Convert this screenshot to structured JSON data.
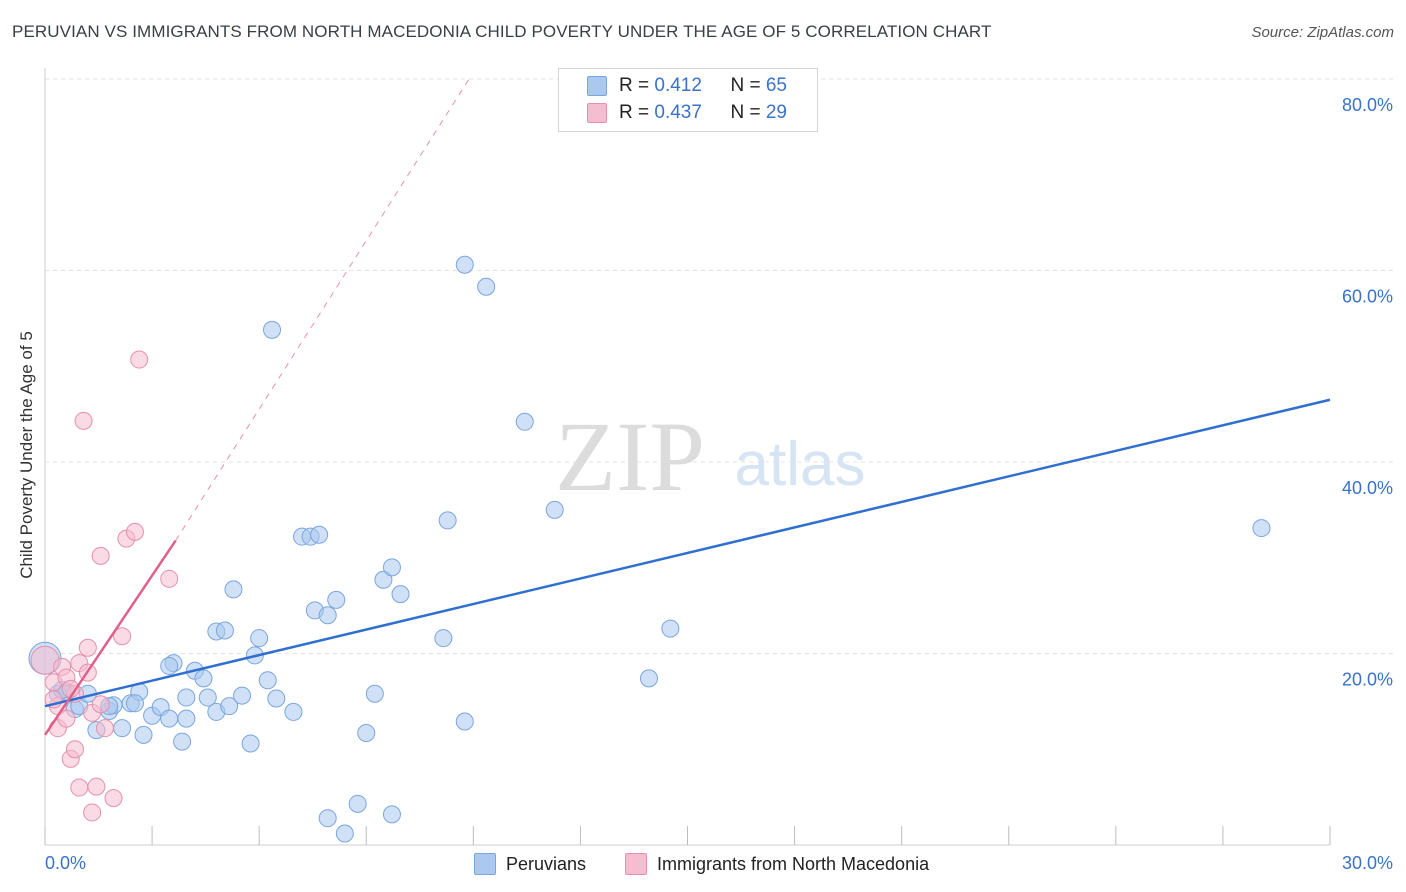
{
  "title": "PERUVIAN VS IMMIGRANTS FROM NORTH MACEDONIA CHILD POVERTY UNDER THE AGE OF 5 CORRELATION CHART",
  "source": "Source: ZipAtlas.com",
  "watermark": {
    "zip": "ZIP",
    "atlas": "atlas"
  },
  "legend": [
    {
      "r_label": "R = ",
      "r_value": "0.412",
      "n_label": "N = ",
      "n_value": "65"
    },
    {
      "r_label": "R = ",
      "r_value": "0.437",
      "n_label": "N = ",
      "n_value": "29"
    }
  ],
  "bottom_legend": {
    "series1": "Peruvians",
    "series2": "Immigrants from North Macedonia"
  },
  "colors": {
    "blue_fill": "#aac8f0",
    "blue_stroke": "#7aa6dc",
    "blue_line": "#2f6fd0",
    "pink_fill": "#f6bcd0",
    "pink_stroke": "#e590ad",
    "pink_line": "#e0608c",
    "axis_text": "#3a72c8",
    "grid": "#e3e3e3"
  },
  "chart_data": {
    "type": "scatter",
    "title": "PERUVIAN VS IMMIGRANTS FROM NORTH MACEDONIA CHILD POVERTY UNDER THE AGE OF 5 CORRELATION CHART",
    "xlabel": "",
    "ylabel": "Child Poverty Under the Age of 5",
    "xlim": [
      0,
      30
    ],
    "ylim": [
      0,
      80
    ],
    "x_tick_labels": [
      "0.0%",
      "30.0%"
    ],
    "y_ticks": [
      20,
      40,
      60,
      80
    ],
    "y_tick_labels": [
      "20.0%",
      "40.0%",
      "60.0%",
      "80.0%"
    ],
    "series": [
      {
        "name": "Peruvians",
        "color": "#7aa6dc",
        "points": [
          [
            0.0,
            19.5
          ],
          [
            0.3,
            15.8
          ],
          [
            0.5,
            16.0
          ],
          [
            0.7,
            14.2
          ],
          [
            0.8,
            14.5
          ],
          [
            1.0,
            15.8
          ],
          [
            1.2,
            12.0
          ],
          [
            1.5,
            14.0
          ],
          [
            1.6,
            14.6
          ],
          [
            1.8,
            12.2
          ],
          [
            2.0,
            14.8
          ],
          [
            2.2,
            16.0
          ],
          [
            2.3,
            11.5
          ],
          [
            2.5,
            13.5
          ],
          [
            2.7,
            14.4
          ],
          [
            2.9,
            13.2
          ],
          [
            3.0,
            19.0
          ],
          [
            3.3,
            15.4
          ],
          [
            3.2,
            10.8
          ],
          [
            3.3,
            13.2
          ],
          [
            3.5,
            18.2
          ],
          [
            3.7,
            17.4
          ],
          [
            3.8,
            15.4
          ],
          [
            4.0,
            13.9
          ],
          [
            4.0,
            22.3
          ],
          [
            4.2,
            22.4
          ],
          [
            4.3,
            14.5
          ],
          [
            4.4,
            26.7
          ],
          [
            4.6,
            15.6
          ],
          [
            4.8,
            10.6
          ],
          [
            4.9,
            19.8
          ],
          [
            5.0,
            21.6
          ],
          [
            5.2,
            17.2
          ],
          [
            5.4,
            15.3
          ],
          [
            5.8,
            13.9
          ],
          [
            5.3,
            53.8
          ],
          [
            6.0,
            32.2
          ],
          [
            6.2,
            32.2
          ],
          [
            6.4,
            32.4
          ],
          [
            6.3,
            24.5
          ],
          [
            6.6,
            24.0
          ],
          [
            6.8,
            25.6
          ],
          [
            6.6,
            2.8
          ],
          [
            7.0,
            1.2
          ],
          [
            7.3,
            4.3
          ],
          [
            7.5,
            11.7
          ],
          [
            7.7,
            15.8
          ],
          [
            7.9,
            27.7
          ],
          [
            8.1,
            29.0
          ],
          [
            8.3,
            26.2
          ],
          [
            8.1,
            3.2
          ],
          [
            9.3,
            21.6
          ],
          [
            9.4,
            33.9
          ],
          [
            9.8,
            12.9
          ],
          [
            9.8,
            60.6
          ],
          [
            10.3,
            58.3
          ],
          [
            11.2,
            44.2
          ],
          [
            11.9,
            35.0
          ],
          [
            14.1,
            17.4
          ],
          [
            14.6,
            22.6
          ],
          [
            28.4,
            33.1
          ],
          [
            1.5,
            14.5
          ],
          [
            2.1,
            14.8
          ],
          [
            0.4,
            16.2
          ],
          [
            2.9,
            18.7
          ]
        ]
      },
      {
        "name": "Immigrants from North Macedonia",
        "color": "#e590ad",
        "points": [
          [
            0.0,
            19.3
          ],
          [
            0.2,
            17.0
          ],
          [
            0.3,
            14.5
          ],
          [
            0.3,
            12.2
          ],
          [
            0.4,
            18.6
          ],
          [
            0.5,
            17.5
          ],
          [
            0.5,
            13.2
          ],
          [
            0.6,
            9.0
          ],
          [
            0.7,
            10.0
          ],
          [
            0.7,
            15.8
          ],
          [
            0.8,
            19.0
          ],
          [
            0.8,
            6.0
          ],
          [
            0.9,
            44.3
          ],
          [
            1.0,
            20.6
          ],
          [
            1.0,
            18.0
          ],
          [
            1.1,
            3.4
          ],
          [
            1.1,
            13.8
          ],
          [
            1.2,
            6.1
          ],
          [
            1.3,
            14.7
          ],
          [
            1.3,
            30.2
          ],
          [
            1.4,
            12.2
          ],
          [
            1.6,
            4.9
          ],
          [
            1.8,
            21.8
          ],
          [
            1.9,
            32.0
          ],
          [
            2.1,
            32.7
          ],
          [
            2.2,
            50.7
          ],
          [
            2.9,
            27.8
          ],
          [
            0.2,
            15.2
          ],
          [
            0.6,
            16.3
          ]
        ]
      }
    ],
    "trend_lines": [
      {
        "series": "Peruvians",
        "x": [
          0,
          30
        ],
        "y": [
          14.5,
          46.5
        ],
        "style": "solid"
      },
      {
        "series": "Immigrants from North Macedonia",
        "x": [
          0,
          3.05
        ],
        "y": [
          11.5,
          31.8
        ],
        "style": "solid"
      },
      {
        "series": "Immigrants from North Macedonia",
        "x": [
          3.05,
          9.9
        ],
        "y": [
          31.8,
          80.0
        ],
        "style": "dashed"
      }
    ],
    "legend_position": "top-center",
    "grid": true
  }
}
